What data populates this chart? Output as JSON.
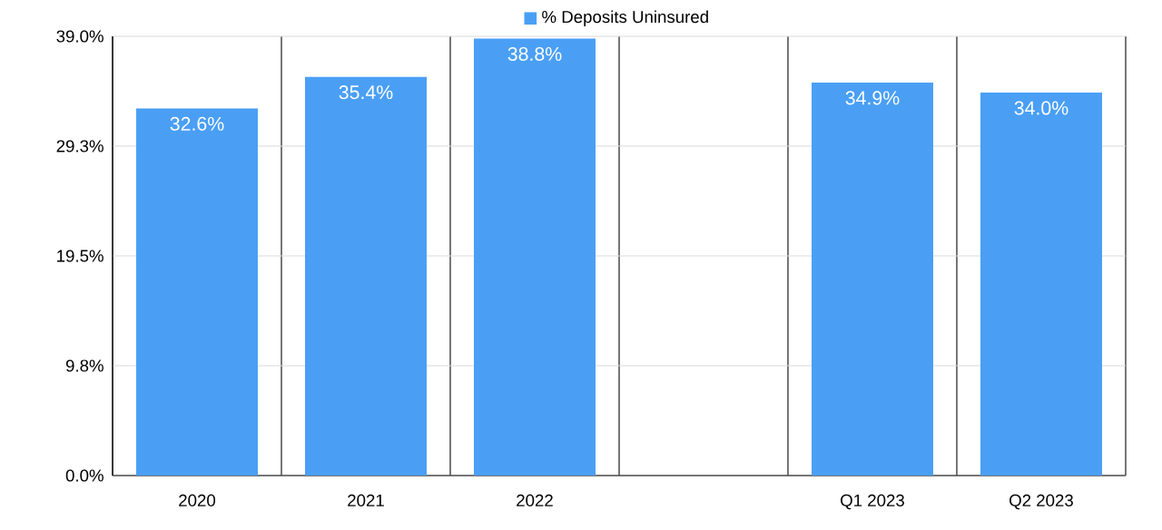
{
  "chart_data": {
    "type": "bar",
    "categories": [
      "2020",
      "2021",
      "2022",
      null,
      "Q1 2023",
      "Q2 2023"
    ],
    "series": [
      {
        "name": "% Deposits Uninsured",
        "color": "#4a9ff5",
        "values": [
          32.6,
          35.4,
          38.8,
          null,
          34.9,
          34.0
        ],
        "value_labels": [
          "32.6%",
          "35.4%",
          "38.8%",
          null,
          "34.9%",
          "34.0%"
        ]
      }
    ],
    "ylim": [
      0,
      39
    ],
    "yticks": [
      {
        "value": 0,
        "label": "0.0%"
      },
      {
        "value": 9.75,
        "label": "9.8%"
      },
      {
        "value": 19.5,
        "label": "19.5%"
      },
      {
        "value": 29.25,
        "label": "29.3%"
      },
      {
        "value": 39,
        "label": "39.0%"
      }
    ],
    "grid": true,
    "legend": "top"
  }
}
